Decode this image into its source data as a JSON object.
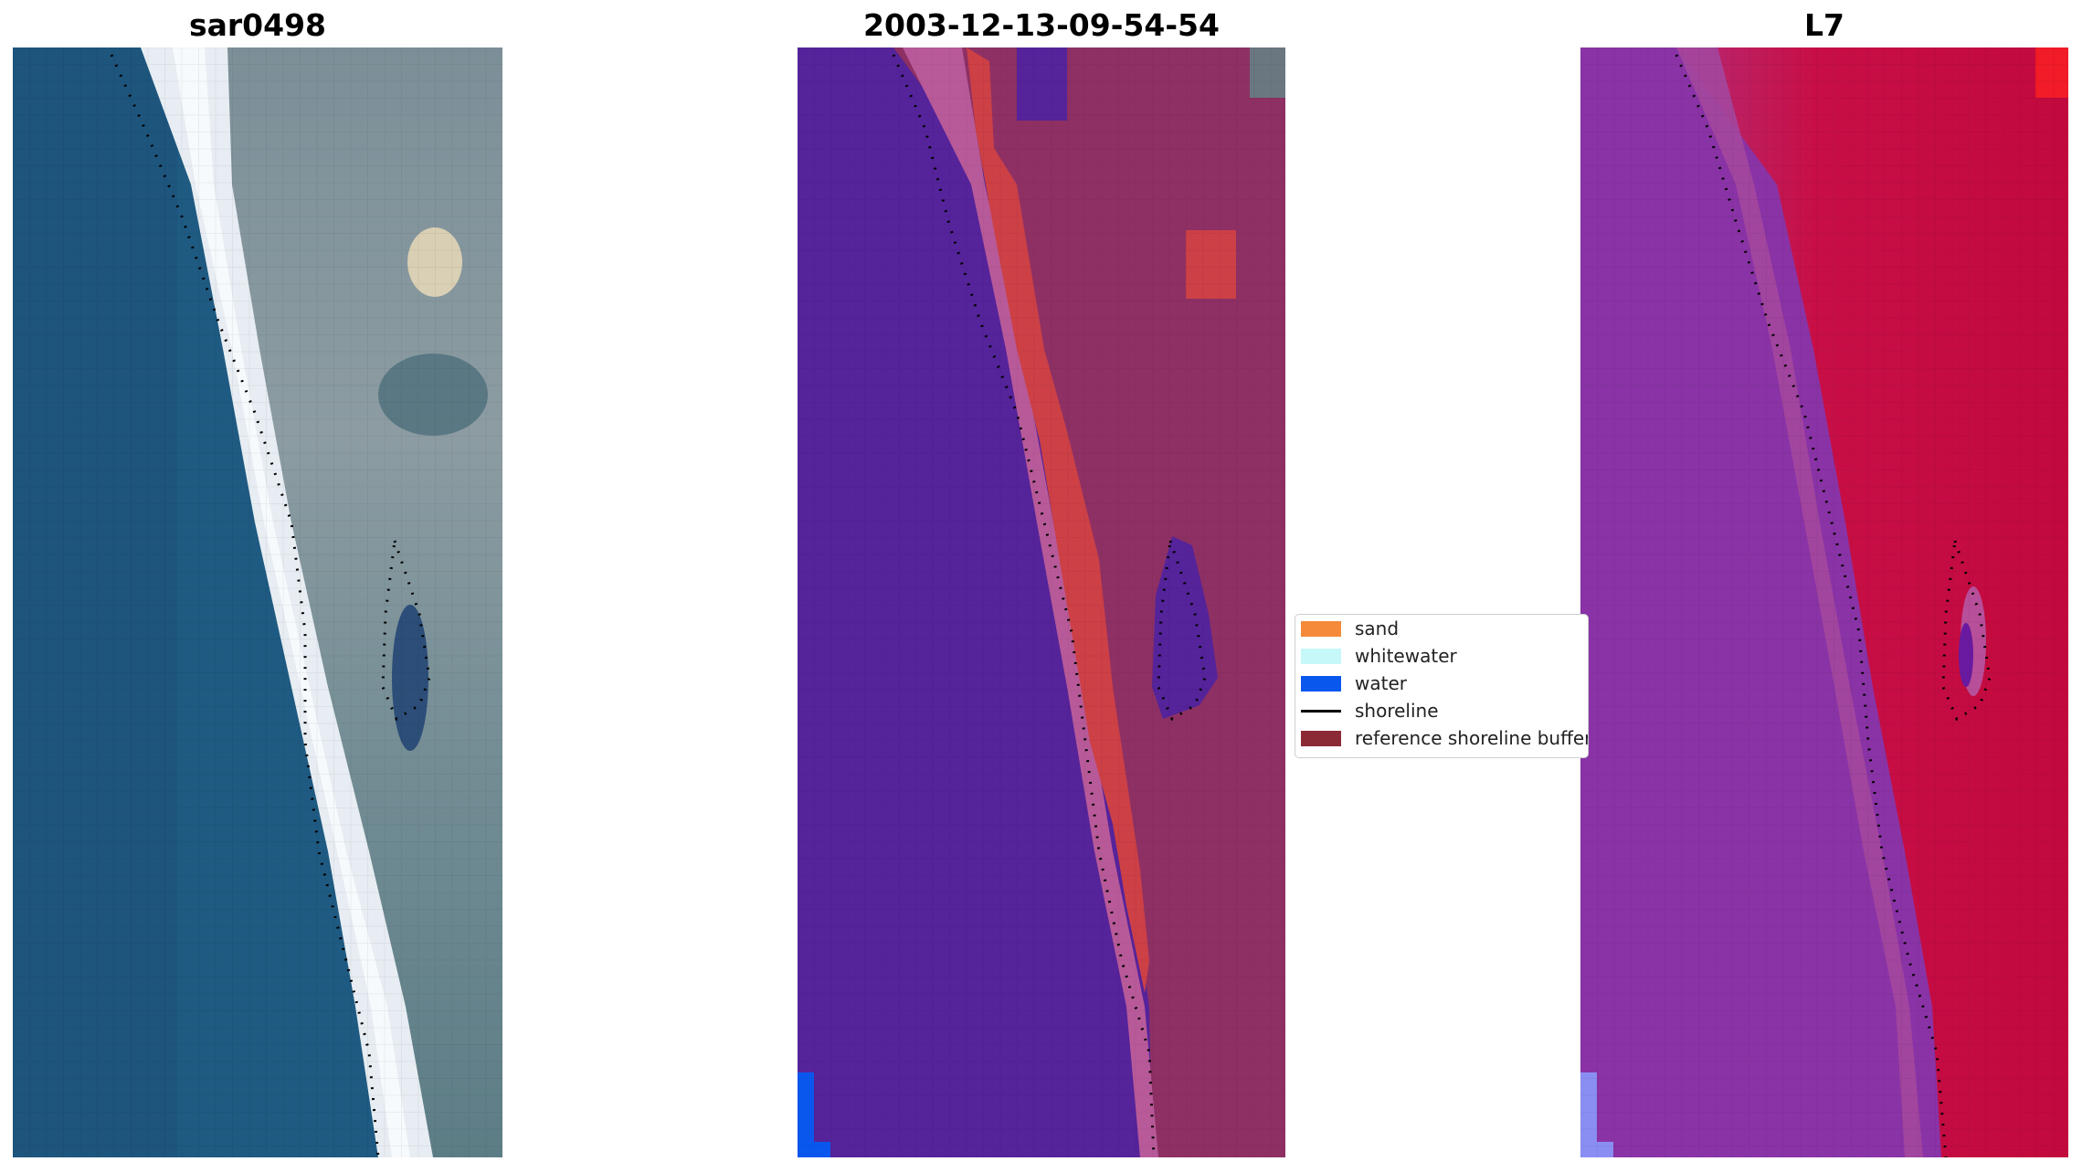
{
  "panels": {
    "left_title": "sar0498",
    "middle_title": "2003-12-13-09-54-54",
    "right_title": "L7"
  },
  "legend": {
    "items": [
      {
        "label": "sand",
        "color": "#f58a3a"
      },
      {
        "label": "whitewater",
        "color": "#c7f8f9"
      },
      {
        "label": "water",
        "color": "#0a57ee"
      },
      {
        "label": "shoreline",
        "color": "#000000"
      },
      {
        "label": "reference shoreline buffer",
        "color": "#8b2a35"
      }
    ]
  },
  "colors": {
    "ocean_rgb": "#1e5580",
    "beach_rgb": "#e6ecf2",
    "class_water": "#55239a",
    "class_land": "#8e3064",
    "class_sand_band": "#cc4046",
    "class_whitewater_band": "#b85a99",
    "swir_land": "#c5093d",
    "swir_water": "#8b32a8"
  }
}
